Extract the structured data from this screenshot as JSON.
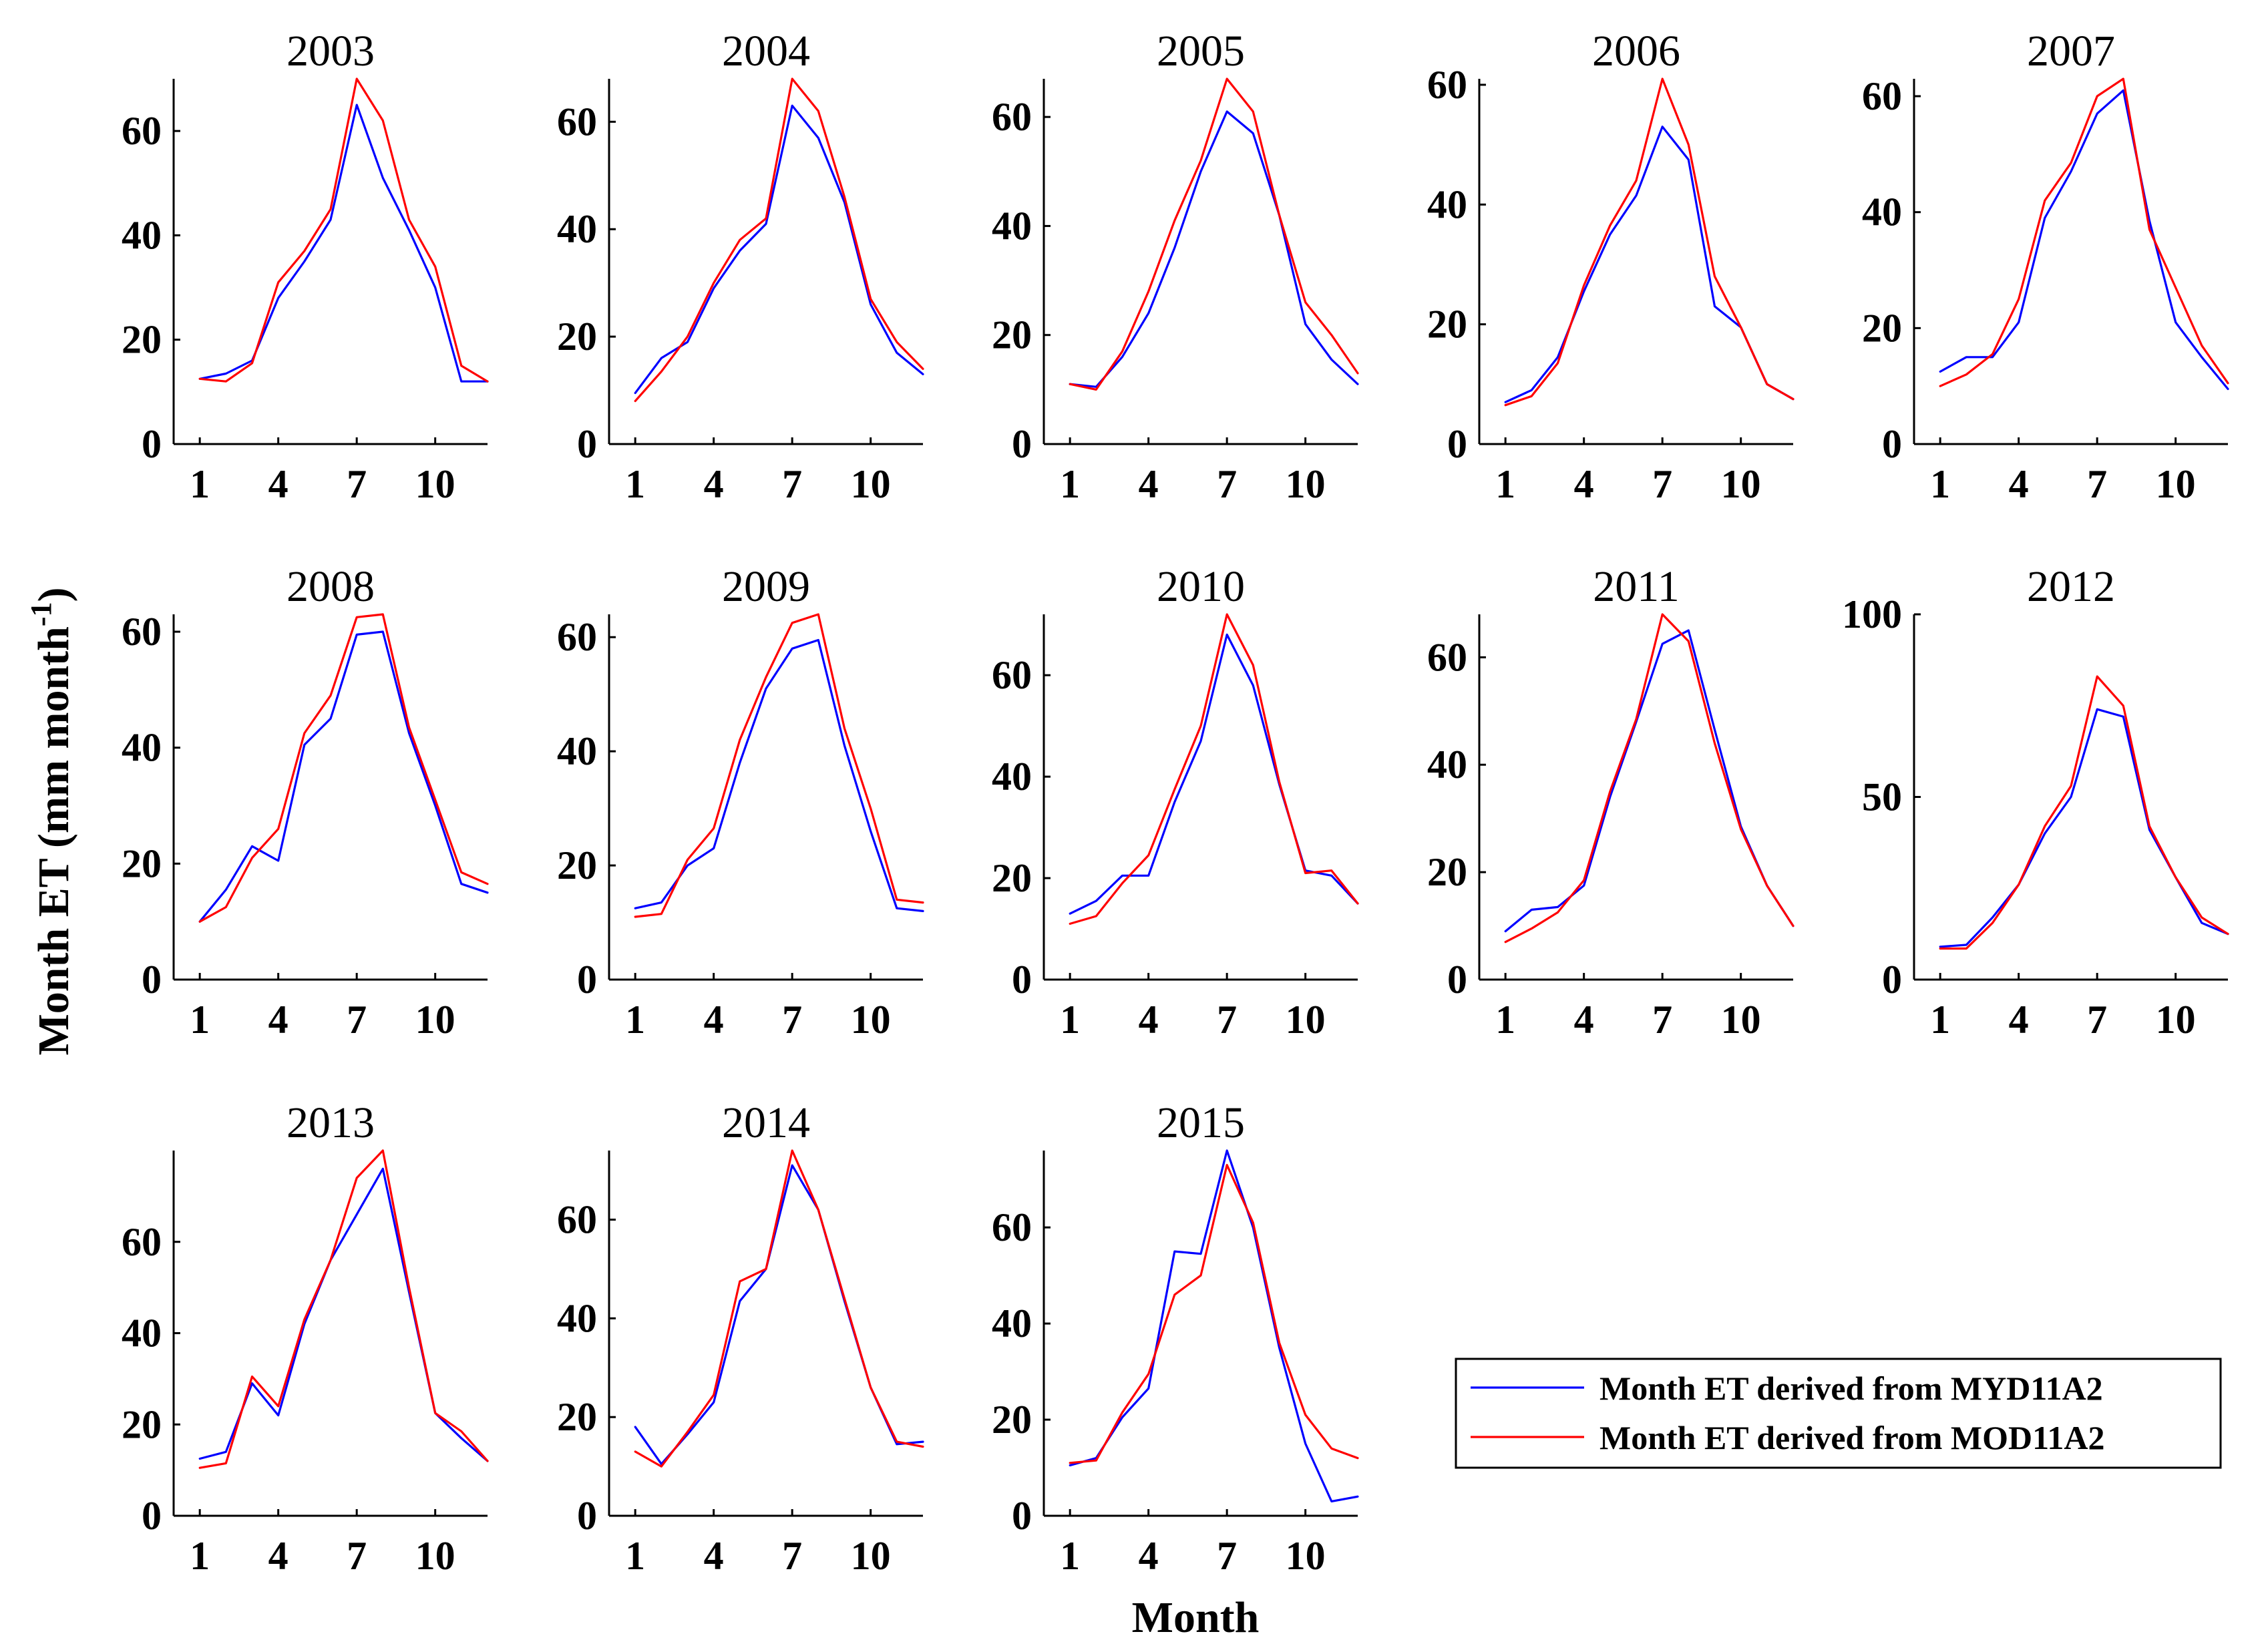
{
  "figure": {
    "ylabel_main": "Month ET (mm month",
    "ylabel_sup": "-1",
    "ylabel_close": ")",
    "xlabel": "Month"
  },
  "legend": {
    "entries": [
      {
        "label": "Month ET derived from MYD11A2",
        "color": "#0000ff"
      },
      {
        "label": "Month ET derived from MOD11A2",
        "color": "#ff0000"
      }
    ]
  },
  "chart_data": [
    {
      "type": "line",
      "title": "2003",
      "xlabel": "",
      "ylabel": "",
      "xlim": [
        0,
        12
      ],
      "ylim": [
        0,
        70
      ],
      "yticks": [
        0,
        20,
        40,
        60
      ],
      "xticks": [
        1,
        4,
        7,
        10
      ],
      "x": [
        1,
        2,
        3,
        4,
        5,
        6,
        7,
        8,
        9,
        10,
        11,
        12
      ],
      "series": [
        {
          "name": "Month ET derived from MYD11A2",
          "color": "#0000ff",
          "values": [
            12.5,
            13.5,
            16,
            28,
            35,
            43,
            65,
            51,
            41,
            30,
            12,
            12
          ]
        },
        {
          "name": "Month ET derived from MOD11A2",
          "color": "#ff0000",
          "values": [
            12.5,
            12,
            15.5,
            31,
            37,
            45,
            70,
            62,
            43,
            34,
            15,
            12
          ]
        }
      ]
    },
    {
      "type": "line",
      "title": "2004",
      "xlabel": "",
      "ylabel": "",
      "xlim": [
        0,
        12
      ],
      "ylim": [
        0,
        68
      ],
      "yticks": [
        0,
        20,
        40,
        60
      ],
      "xticks": [
        1,
        4,
        7,
        10
      ],
      "x": [
        1,
        2,
        3,
        4,
        5,
        6,
        7,
        8,
        9,
        10,
        11,
        12
      ],
      "series": [
        {
          "name": "Month ET derived from MYD11A2",
          "color": "#0000ff",
          "values": [
            9.5,
            16,
            19,
            29,
            36,
            41,
            63,
            57,
            45,
            26,
            17,
            13
          ]
        },
        {
          "name": "Month ET derived from MOD11A2",
          "color": "#ff0000",
          "values": [
            8,
            13.5,
            20,
            30,
            38,
            42,
            68,
            62,
            46,
            27,
            19,
            14
          ]
        }
      ]
    },
    {
      "type": "line",
      "title": "2005",
      "xlabel": "",
      "ylabel": "",
      "xlim": [
        0,
        12
      ],
      "ylim": [
        0,
        67
      ],
      "yticks": [
        0,
        20,
        40,
        60
      ],
      "xticks": [
        1,
        4,
        7,
        10
      ],
      "x": [
        1,
        2,
        3,
        4,
        5,
        6,
        7,
        8,
        9,
        10,
        11,
        12
      ],
      "series": [
        {
          "name": "Month ET derived from MYD11A2",
          "color": "#0000ff",
          "values": [
            11,
            10.5,
            16,
            24,
            36,
            50,
            61,
            57,
            42,
            22,
            15.5,
            11
          ]
        },
        {
          "name": "Month ET derived from MOD11A2",
          "color": "#ff0000",
          "values": [
            11,
            10,
            17,
            28,
            41,
            52,
            67,
            61,
            42,
            26,
            20,
            13
          ]
        }
      ]
    },
    {
      "type": "line",
      "title": "2006",
      "xlabel": "",
      "ylabel": "",
      "xlim": [
        0,
        12
      ],
      "ylim": [
        0,
        61
      ],
      "yticks": [
        0,
        20,
        40,
        60
      ],
      "xticks": [
        1,
        4,
        7,
        10
      ],
      "x": [
        1,
        2,
        3,
        4,
        5,
        6,
        7,
        8,
        9,
        10,
        11,
        12
      ],
      "series": [
        {
          "name": "Month ET derived from MYD11A2",
          "color": "#0000ff",
          "values": [
            7,
            9,
            14.5,
            25.5,
            35,
            41.5,
            53,
            47.5,
            23,
            19.5,
            10,
            7.5
          ]
        },
        {
          "name": "Month ET derived from MOD11A2",
          "color": "#ff0000",
          "values": [
            6.5,
            8,
            13.5,
            26.5,
            36.5,
            44,
            61,
            50,
            28,
            19.5,
            10,
            7.5
          ]
        }
      ]
    },
    {
      "type": "line",
      "title": "2007",
      "xlabel": "",
      "ylabel": "",
      "xlim": [
        0,
        12
      ],
      "ylim": [
        0,
        63
      ],
      "yticks": [
        0,
        20,
        40,
        60
      ],
      "xticks": [
        1,
        4,
        7,
        10
      ],
      "x": [
        1,
        2,
        3,
        4,
        5,
        6,
        7,
        8,
        9,
        10,
        11,
        12
      ],
      "series": [
        {
          "name": "Month ET derived from MYD11A2",
          "color": "#0000ff",
          "values": [
            12.5,
            15,
            15,
            21,
            39,
            47,
            57,
            61,
            38.5,
            21,
            15,
            9.5
          ]
        },
        {
          "name": "Month ET derived from MOD11A2",
          "color": "#ff0000",
          "values": [
            10,
            12,
            15.5,
            25,
            42,
            48.5,
            60,
            63,
            37,
            27,
            17,
            10.5
          ]
        }
      ]
    },
    {
      "type": "line",
      "title": "2008",
      "xlabel": "",
      "ylabel": "",
      "xlim": [
        0,
        12
      ],
      "ylim": [
        0,
        63
      ],
      "yticks": [
        0,
        20,
        40,
        60
      ],
      "xticks": [
        1,
        4,
        7,
        10
      ],
      "x": [
        1,
        2,
        3,
        4,
        5,
        6,
        7,
        8,
        9,
        10,
        11,
        12
      ],
      "series": [
        {
          "name": "Month ET derived from MYD11A2",
          "color": "#0000ff",
          "values": [
            10,
            15.5,
            23,
            20.5,
            40.5,
            45,
            59.5,
            60,
            42.5,
            30,
            16.5,
            15
          ]
        },
        {
          "name": "Month ET derived from MOD11A2",
          "color": "#ff0000",
          "values": [
            10,
            12.5,
            21,
            26,
            42.5,
            49,
            62.5,
            63,
            43.5,
            31,
            18.5,
            16.5
          ]
        }
      ]
    },
    {
      "type": "line",
      "title": "2009",
      "xlabel": "",
      "ylabel": "",
      "xlim": [
        0,
        12
      ],
      "ylim": [
        0,
        64
      ],
      "yticks": [
        0,
        20,
        40,
        60
      ],
      "xticks": [
        1,
        4,
        7,
        10
      ],
      "x": [
        1,
        2,
        3,
        4,
        5,
        6,
        7,
        8,
        9,
        10,
        11,
        12
      ],
      "series": [
        {
          "name": "Month ET derived from MYD11A2",
          "color": "#0000ff",
          "values": [
            12.5,
            13.5,
            20,
            23,
            38,
            51,
            58,
            59.5,
            41,
            26,
            12.5,
            12
          ]
        },
        {
          "name": "Month ET derived from MOD11A2",
          "color": "#ff0000",
          "values": [
            11,
            11.5,
            21,
            26.5,
            42,
            53,
            62.5,
            64,
            44,
            30,
            14,
            13.5
          ]
        }
      ]
    },
    {
      "type": "line",
      "title": "2010",
      "xlabel": "",
      "ylabel": "",
      "xlim": [
        0,
        12
      ],
      "ylim": [
        0,
        72
      ],
      "yticks": [
        0,
        20,
        40,
        60
      ],
      "xticks": [
        1,
        4,
        7,
        10
      ],
      "x": [
        1,
        2,
        3,
        4,
        5,
        6,
        7,
        8,
        9,
        10,
        11,
        12
      ],
      "series": [
        {
          "name": "Month ET derived from MYD11A2",
          "color": "#0000ff",
          "values": [
            13,
            15.5,
            20.5,
            20.5,
            35,
            47,
            68,
            58,
            38.5,
            21.5,
            20.5,
            15
          ]
        },
        {
          "name": "Month ET derived from MOD11A2",
          "color": "#ff0000",
          "values": [
            11,
            12.5,
            19,
            24.5,
            37.5,
            50,
            72,
            62,
            39,
            21,
            21.5,
            15
          ]
        }
      ]
    },
    {
      "type": "line",
      "title": "2011",
      "xlabel": "",
      "ylabel": "",
      "xlim": [
        0,
        12
      ],
      "ylim": [
        0,
        68
      ],
      "yticks": [
        0,
        20,
        40,
        60
      ],
      "xticks": [
        1,
        4,
        7,
        10
      ],
      "x": [
        1,
        2,
        3,
        4,
        5,
        6,
        7,
        8,
        9,
        10,
        11,
        12
      ],
      "series": [
        {
          "name": "Month ET derived from MYD11A2",
          "color": "#0000ff",
          "values": [
            9,
            13,
            13.5,
            17.5,
            34,
            48,
            62.5,
            65,
            46.5,
            28.5,
            17.5,
            10
          ]
        },
        {
          "name": "Month ET derived from MOD11A2",
          "color": "#ff0000",
          "values": [
            7,
            9.5,
            12.5,
            18.5,
            35,
            48.5,
            68,
            63,
            44,
            28,
            17.5,
            10
          ]
        }
      ]
    },
    {
      "type": "line",
      "title": "2012",
      "xlabel": "",
      "ylabel": "",
      "xlim": [
        0,
        12
      ],
      "ylim": [
        0,
        100
      ],
      "yticks": [
        0,
        50,
        100
      ],
      "xticks": [
        1,
        4,
        7,
        10
      ],
      "x": [
        1,
        2,
        3,
        4,
        5,
        6,
        7,
        8,
        9,
        10,
        11,
        12
      ],
      "series": [
        {
          "name": "Month ET derived from MYD11A2",
          "color": "#0000ff",
          "values": [
            9,
            9.5,
            17,
            26,
            40,
            50,
            74,
            72,
            41,
            28,
            15.5,
            12.5
          ]
        },
        {
          "name": "Month ET derived from MOD11A2",
          "color": "#ff0000",
          "values": [
            8.5,
            8.5,
            15.5,
            26,
            42,
            53,
            83,
            75,
            42,
            28,
            17,
            12.5
          ]
        }
      ]
    },
    {
      "type": "line",
      "title": "2013",
      "xlabel": "",
      "ylabel": "",
      "xlim": [
        0,
        12
      ],
      "ylim": [
        0,
        80
      ],
      "yticks": [
        0,
        20,
        40,
        60
      ],
      "xticks": [
        1,
        4,
        7,
        10
      ],
      "x": [
        1,
        2,
        3,
        4,
        5,
        6,
        7,
        8,
        9,
        10,
        11,
        12
      ],
      "series": [
        {
          "name": "Month ET derived from MYD11A2",
          "color": "#0000ff",
          "values": [
            12.5,
            14,
            29,
            22,
            42,
            56,
            66,
            76,
            49,
            22.5,
            17,
            12
          ]
        },
        {
          "name": "Month ET derived from MOD11A2",
          "color": "#ff0000",
          "values": [
            10.5,
            11.5,
            30.5,
            24,
            43,
            56,
            74,
            80,
            50,
            22.5,
            18.5,
            12
          ]
        }
      ]
    },
    {
      "type": "line",
      "title": "2014",
      "xlabel": "",
      "ylabel": "",
      "xlim": [
        0,
        12
      ],
      "ylim": [
        0,
        74
      ],
      "yticks": [
        0,
        20,
        40,
        60
      ],
      "xticks": [
        1,
        4,
        7,
        10
      ],
      "x": [
        1,
        2,
        3,
        4,
        5,
        6,
        7,
        8,
        9,
        10,
        11,
        12
      ],
      "series": [
        {
          "name": "Month ET derived from MYD11A2",
          "color": "#0000ff",
          "values": [
            18,
            10.5,
            16.5,
            23,
            43.5,
            50,
            71,
            62,
            43.5,
            26,
            14.5,
            15
          ]
        },
        {
          "name": "Month ET derived from MOD11A2",
          "color": "#ff0000",
          "values": [
            13,
            10,
            17,
            24.5,
            47.5,
            50,
            74,
            62,
            44,
            26,
            15,
            14
          ]
        }
      ]
    },
    {
      "type": "line",
      "title": "2015",
      "xlabel": "",
      "ylabel": "",
      "xlim": [
        0,
        12
      ],
      "ylim": [
        0,
        76
      ],
      "yticks": [
        0,
        20,
        40,
        60
      ],
      "xticks": [
        1,
        4,
        7,
        10
      ],
      "x": [
        1,
        2,
        3,
        4,
        5,
        6,
        7,
        8,
        9,
        10,
        11,
        12
      ],
      "series": [
        {
          "name": "Month ET derived from MYD11A2",
          "color": "#0000ff",
          "values": [
            10.5,
            12,
            20.5,
            26.5,
            55,
            54.5,
            76,
            60,
            35,
            15,
            3,
            4
          ]
        },
        {
          "name": "Month ET derived from MOD11A2",
          "color": "#ff0000",
          "values": [
            11,
            11.5,
            21.5,
            29.5,
            46,
            50,
            73,
            61,
            36,
            21,
            14,
            12
          ]
        }
      ]
    }
  ]
}
